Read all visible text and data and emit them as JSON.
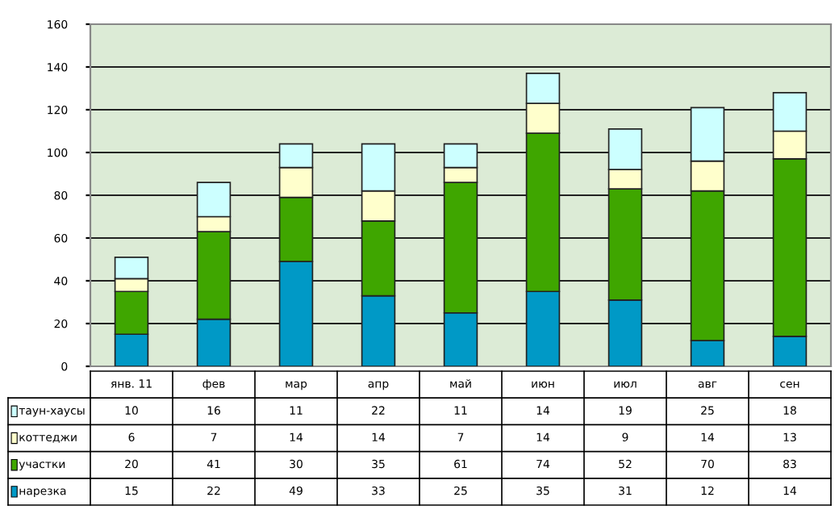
{
  "chart_data": {
    "type": "bar",
    "stacked": true,
    "categories": [
      "янв. 11",
      "фев",
      "мар",
      "апр",
      "май",
      "июн",
      "июл",
      "авг",
      "сен"
    ],
    "series": [
      {
        "name": "нарезка",
        "color": "#0099c6",
        "values": [
          15,
          22,
          49,
          33,
          25,
          35,
          31,
          12,
          14
        ]
      },
      {
        "name": "участки",
        "color": "#3fa600",
        "values": [
          20,
          41,
          30,
          35,
          61,
          74,
          52,
          70,
          83
        ]
      },
      {
        "name": "коттеджи",
        "color": "#ffffcc",
        "values": [
          6,
          7,
          14,
          14,
          7,
          14,
          9,
          14,
          13
        ]
      },
      {
        "name": "таун-хаусы",
        "color": "#ccffff",
        "values": [
          10,
          16,
          11,
          22,
          11,
          14,
          19,
          25,
          18
        ]
      }
    ],
    "ylim": [
      0,
      160
    ],
    "yticks": [
      0,
      20,
      40,
      60,
      80,
      100,
      120,
      140,
      160
    ],
    "grid": "y",
    "data_labels": true,
    "legend": "bottom left"
  }
}
